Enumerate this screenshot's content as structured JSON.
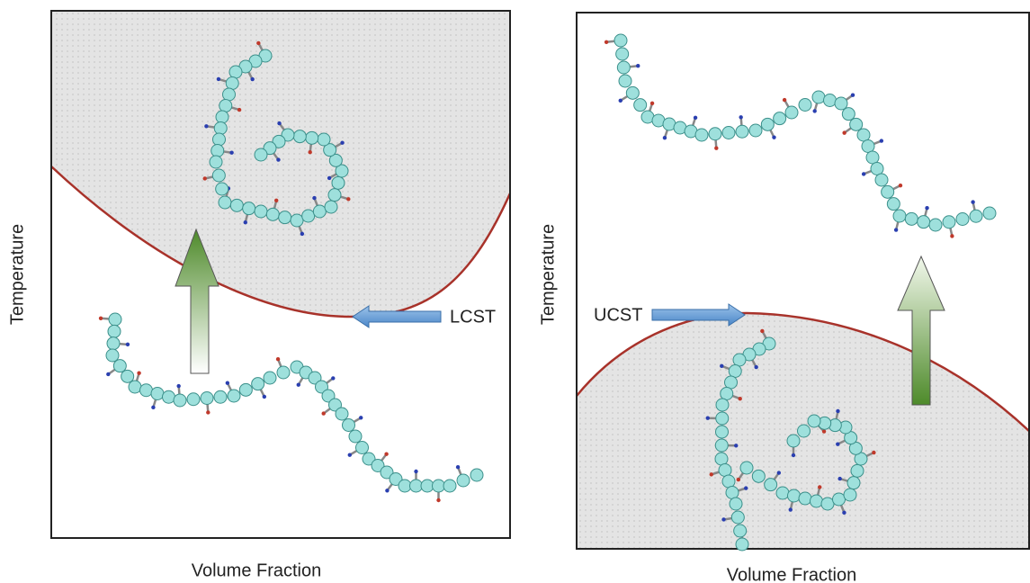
{
  "panels": [
    {
      "y_label": "Temperature",
      "x_label": "Volume Fraction",
      "label": "LCST"
    },
    {
      "y_label": "Temperature",
      "x_label": "Volume Fraction",
      "label": "UCST"
    }
  ]
}
